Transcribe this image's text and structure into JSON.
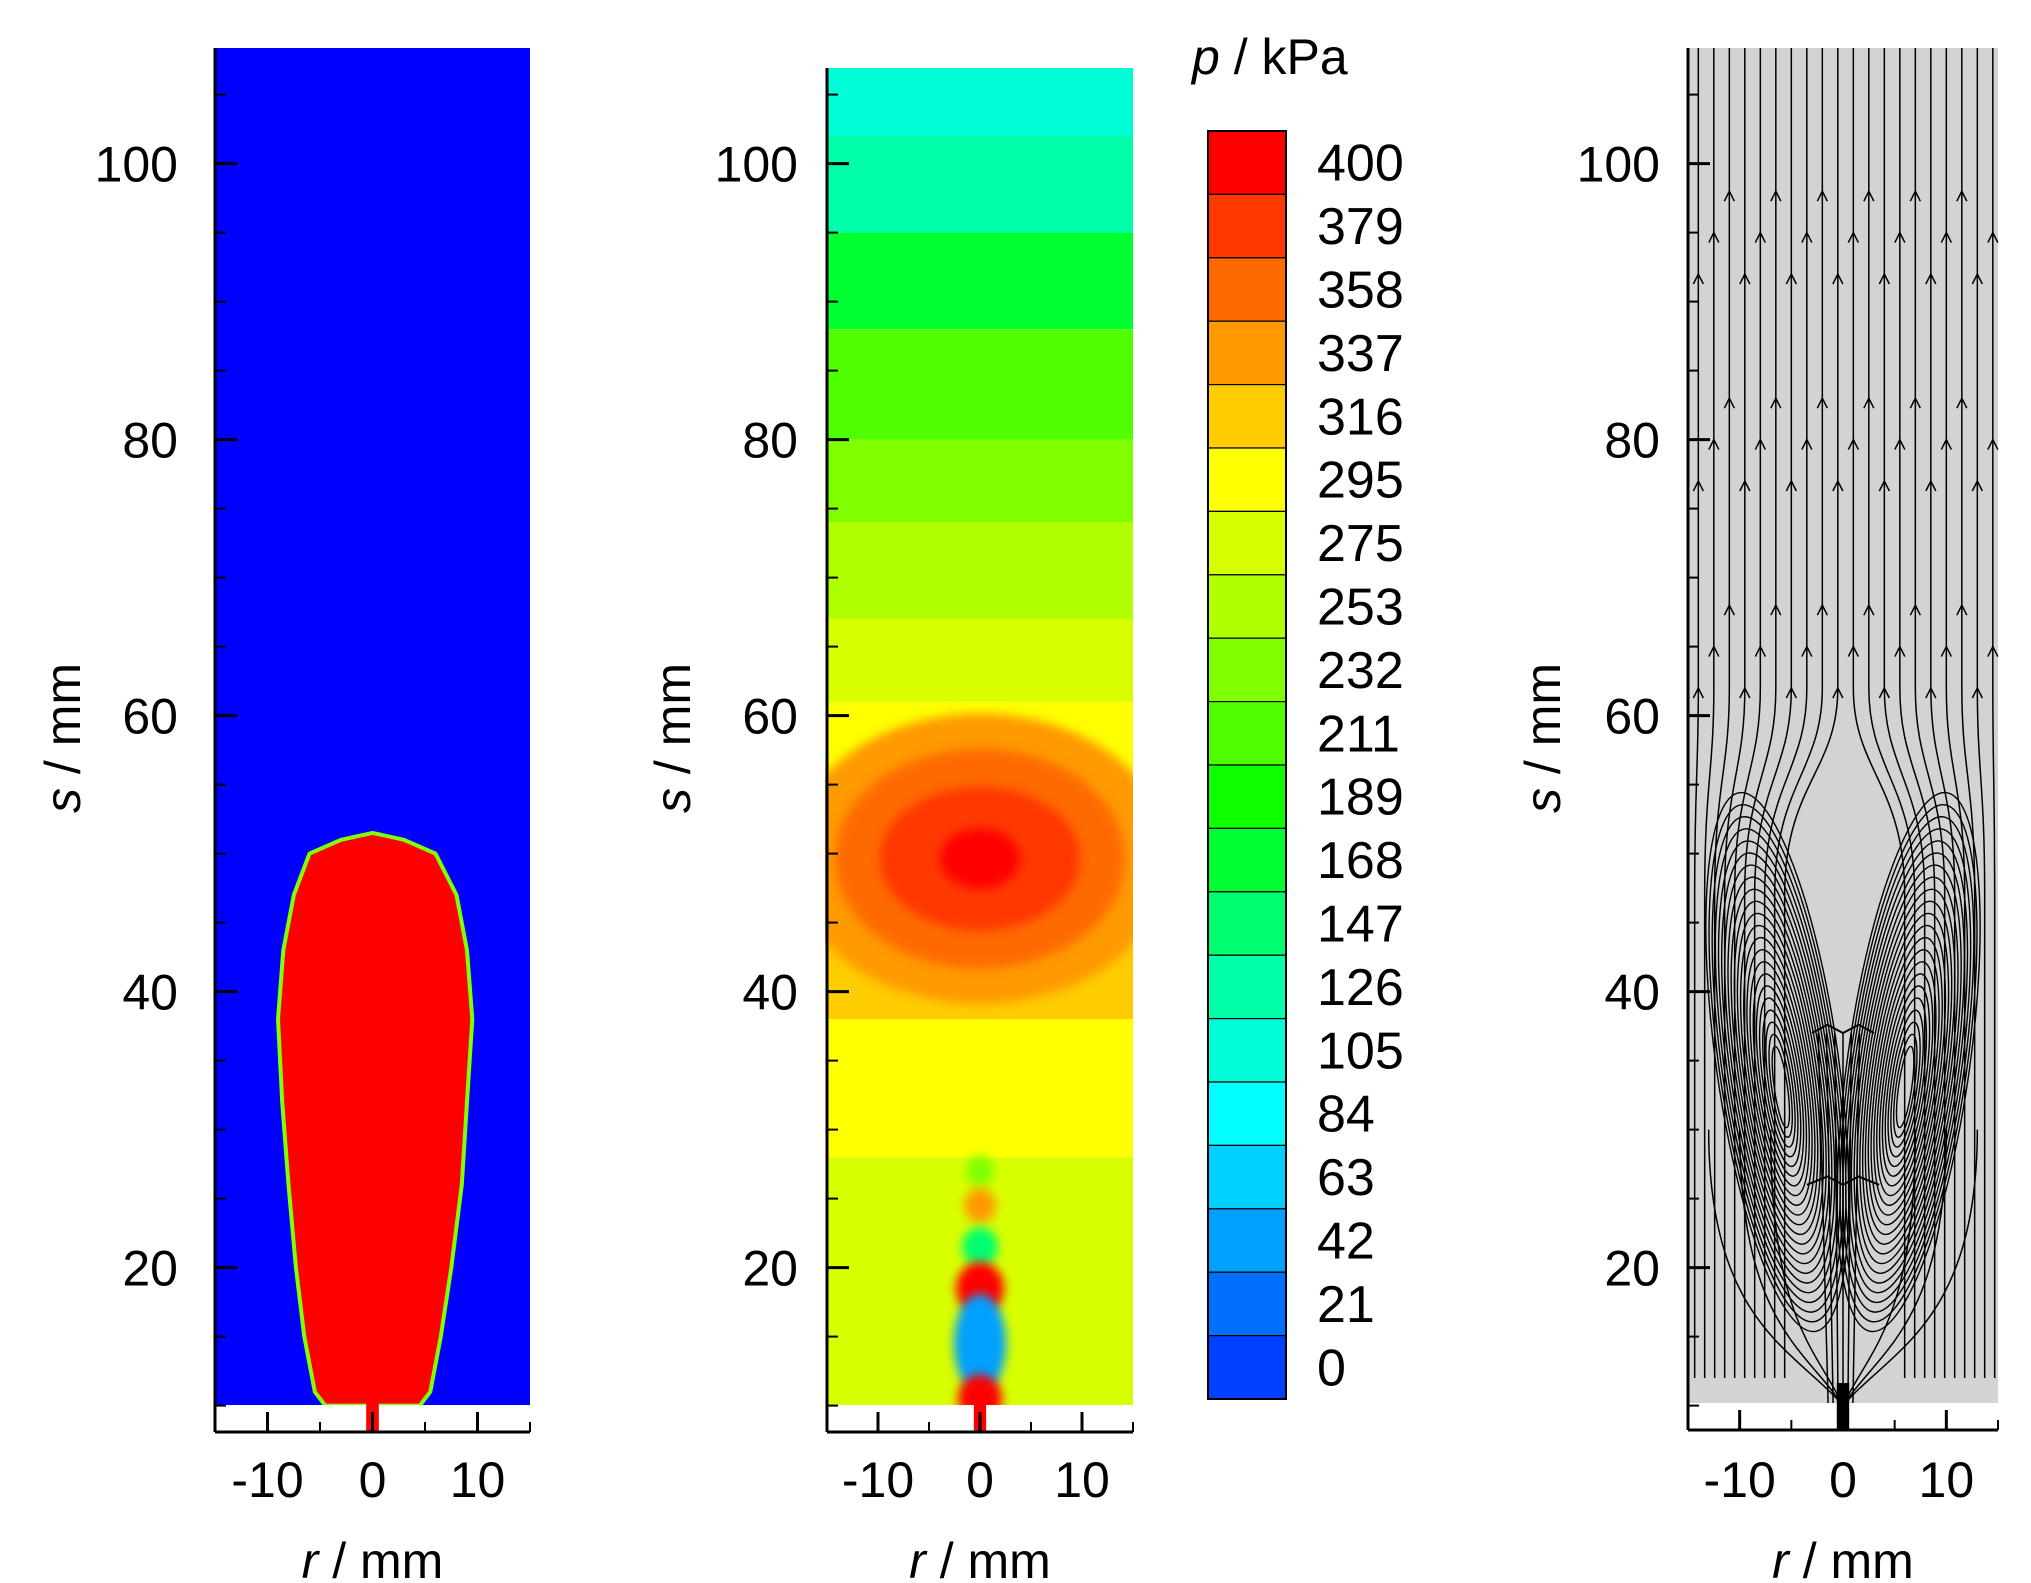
{
  "colorbar": {
    "symbol": "p",
    "unit_text": " / kPa",
    "levels": [
      400,
      379,
      358,
      337,
      316,
      295,
      275,
      253,
      232,
      211,
      189,
      168,
      147,
      126,
      105,
      84,
      63,
      42,
      21,
      0
    ],
    "colors": [
      "#ff0000",
      "#ff3800",
      "#ff6a00",
      "#ff9a00",
      "#ffcc00",
      "#ffff00",
      "#d8ff00",
      "#b0ff00",
      "#80ff00",
      "#50ff00",
      "#10ff00",
      "#00ff30",
      "#00ff70",
      "#00ffa8",
      "#00ffd8",
      "#00ffff",
      "#00d0ff",
      "#00a0ff",
      "#0070ff",
      "#0040ff"
    ]
  },
  "axes": {
    "x_symbol": "r",
    "x_unit": " / mm",
    "y_symbol": "s",
    "y_unit": " / mm",
    "x_ticks": [
      "-10",
      "0",
      "10"
    ],
    "y_ticks": [
      "20",
      "40",
      "60",
      "80",
      "100"
    ]
  },
  "chart_data": [
    {
      "type": "heatmap",
      "field": "phase fraction (bubble red, liquid blue)",
      "xlim": [
        -15,
        15
      ],
      "ylim": [
        8,
        108
      ],
      "x_ticks": [
        -10,
        0,
        10
      ],
      "y_ticks": [
        20,
        40,
        60,
        80,
        100
      ],
      "bubble_outline": [
        [
          0,
          51.5
        ],
        [
          3,
          51
        ],
        [
          6,
          50
        ],
        [
          8,
          47
        ],
        [
          9,
          43
        ],
        [
          9.5,
          38
        ],
        [
          9,
          32
        ],
        [
          8.5,
          26
        ],
        [
          7.5,
          20
        ],
        [
          6.5,
          15
        ],
        [
          5.5,
          11
        ],
        [
          4.5,
          10
        ],
        [
          -4.5,
          10
        ],
        [
          -5.5,
          11
        ],
        [
          -6.5,
          15
        ],
        [
          -7.3,
          20
        ],
        [
          -8,
          26
        ],
        [
          -8.6,
          32
        ],
        [
          -9,
          38
        ],
        [
          -8.5,
          43
        ],
        [
          -7.5,
          47
        ],
        [
          -6,
          50
        ],
        [
          -3,
          51
        ]
      ],
      "colors": {
        "bubble": "#ff0000",
        "liquid": "#0000ff",
        "interface": "#7fff00"
      }
    },
    {
      "type": "heatmap",
      "field": "pressure",
      "unit": "kPa",
      "xlim": [
        -15,
        15
      ],
      "ylim": [
        8,
        108
      ],
      "x_ticks": [
        -10,
        0,
        10
      ],
      "y_ticks": [
        20,
        40,
        60,
        80,
        100
      ],
      "pressure_bands": [
        {
          "s_top": 107,
          "s_bottom": 102,
          "kPa": 105
        },
        {
          "s_top": 102,
          "s_bottom": 95,
          "kPa": 126
        },
        {
          "s_top": 95,
          "s_bottom": 88,
          "kPa": 168
        },
        {
          "s_top": 88,
          "s_bottom": 80,
          "kPa": 211
        },
        {
          "s_top": 80,
          "s_bottom": 74,
          "kPa": 232
        },
        {
          "s_top": 74,
          "s_bottom": 67,
          "kPa": 253
        },
        {
          "s_top": 67,
          "s_bottom": 61,
          "kPa": 275
        },
        {
          "s_top": 61,
          "s_bottom": 55,
          "kPa": 295
        },
        {
          "s_top": 55,
          "s_bottom": 47,
          "kPa": 316
        },
        {
          "s_top": 47,
          "s_bottom": 38,
          "kPa": 316
        },
        {
          "s_top": 38,
          "s_bottom": 28,
          "kPa": 295
        },
        {
          "s_top": 28,
          "s_bottom": 9,
          "kPa": 275
        }
      ],
      "high_pressure_center": {
        "r": 0,
        "s": 50,
        "kPa": 400
      },
      "nozzle_spots": [
        {
          "r": 0,
          "s": 27,
          "kPa": 232
        },
        {
          "r": 0,
          "s": 24.5,
          "kPa": 337
        },
        {
          "r": 0,
          "s": 21.5,
          "kPa": 147
        },
        {
          "r": 0,
          "s": 18.5,
          "kPa": 400
        },
        {
          "r": 0,
          "s": 14.5,
          "kPa": 42
        },
        {
          "r": 0,
          "s": 10.5,
          "kPa": 400
        }
      ]
    },
    {
      "type": "streamlines",
      "field": "velocity streamlines",
      "xlim": [
        -15,
        15
      ],
      "ylim": [
        8,
        108
      ],
      "x_ticks": [
        -10,
        0,
        10
      ],
      "y_ticks": [
        20,
        40,
        60,
        80,
        100
      ],
      "vortex_centers": [
        {
          "r": -6,
          "s": 33
        },
        {
          "r": 6,
          "s": 33
        }
      ],
      "colors": {
        "background": "#d3d3d3",
        "lines": "#000000"
      }
    }
  ]
}
